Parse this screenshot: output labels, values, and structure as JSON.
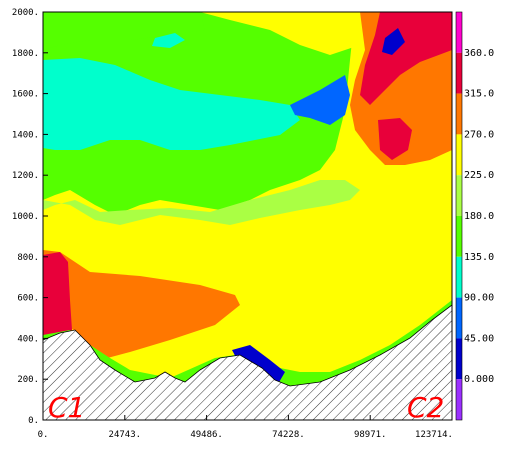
{
  "chart_data": {
    "type": "heatmap",
    "title": "",
    "xlabel": "",
    "ylabel": "",
    "xlim": [
      0,
      123714
    ],
    "ylim": [
      0,
      2000
    ],
    "x_ticks": [
      "0.",
      "24743.",
      "49486.",
      "74228.",
      "98971.",
      "123714."
    ],
    "y_ticks": [
      "0.",
      "200.",
      "400.",
      "600.",
      "800.",
      "1000.",
      "1200.",
      "1400.",
      "1600.",
      "1800.",
      "2000."
    ],
    "colorbar": {
      "labels": [
        "0.000",
        "45.00",
        "90.00",
        "135.0",
        "180.0",
        "225.0",
        "270.0",
        "315.0",
        "360.0"
      ],
      "colors": [
        "#9b30ff",
        "#0000cc",
        "#0066ff",
        "#00ffcc",
        "#55ff00",
        "#aaff44",
        "#ffff00",
        "#ff7700",
        "#e8003a",
        "#ff00cc"
      ]
    },
    "annotations": [
      "C1",
      "C2"
    ],
    "terrain": "hatched"
  }
}
